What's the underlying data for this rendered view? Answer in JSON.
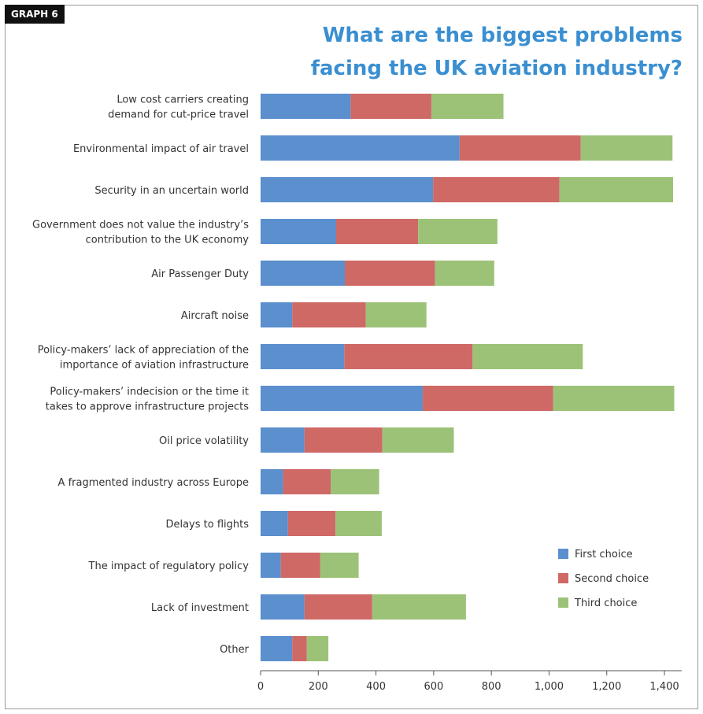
{
  "header": {
    "tag": "GRAPH 6",
    "title_line1": "What are the biggest problems",
    "title_line2": "facing the UK aviation industry?"
  },
  "chart_data": {
    "type": "bar",
    "orientation": "horizontal",
    "stacked": true,
    "categories": [
      [
        "Low cost carriers creating",
        "demand for cut-price travel"
      ],
      [
        "Environmental impact of air travel"
      ],
      [
        "Security in an uncertain world"
      ],
      [
        "Government does not value the industry’s",
        "contribution to the UK economy"
      ],
      [
        "Air Passenger Duty"
      ],
      [
        "Aircraft noise"
      ],
      [
        "Policy-makers’ lack of appreciation of the",
        "importance of aviation infrastructure"
      ],
      [
        "Policy-makers’ indecision or the time it",
        "takes to approve infrastructure projects"
      ],
      [
        "Oil price volatility"
      ],
      [
        "A fragmented industry across Europe"
      ],
      [
        "Delays to flights"
      ],
      [
        "The impact of regulatory policy"
      ],
      [
        "Lack of investment"
      ],
      [
        "Other"
      ]
    ],
    "series": [
      {
        "name": "First choice",
        "color": "#5b8fcd",
        "values": [
          312,
          690,
          598,
          262,
          292,
          110,
          290,
          562,
          152,
          78,
          95,
          70,
          152,
          110
        ]
      },
      {
        "name": "Second choice",
        "color": "#cf6966",
        "values": [
          280,
          420,
          438,
          284,
          313,
          255,
          445,
          452,
          270,
          165,
          165,
          137,
          235,
          50
        ]
      },
      {
        "name": "Third choice",
        "color": "#9cc278",
        "values": [
          250,
          318,
          394,
          275,
          205,
          210,
          382,
          420,
          248,
          168,
          160,
          133,
          325,
          75
        ]
      }
    ],
    "xlim": [
      0,
      1460
    ],
    "xticks": [
      0,
      200,
      400,
      600,
      800,
      1000,
      1200,
      1400
    ],
    "xtick_labels": [
      "0",
      "200",
      "400",
      "600",
      "800",
      "1,000",
      "1,200",
      "1,400"
    ],
    "legend_position": "bottom-right",
    "grid": false
  }
}
